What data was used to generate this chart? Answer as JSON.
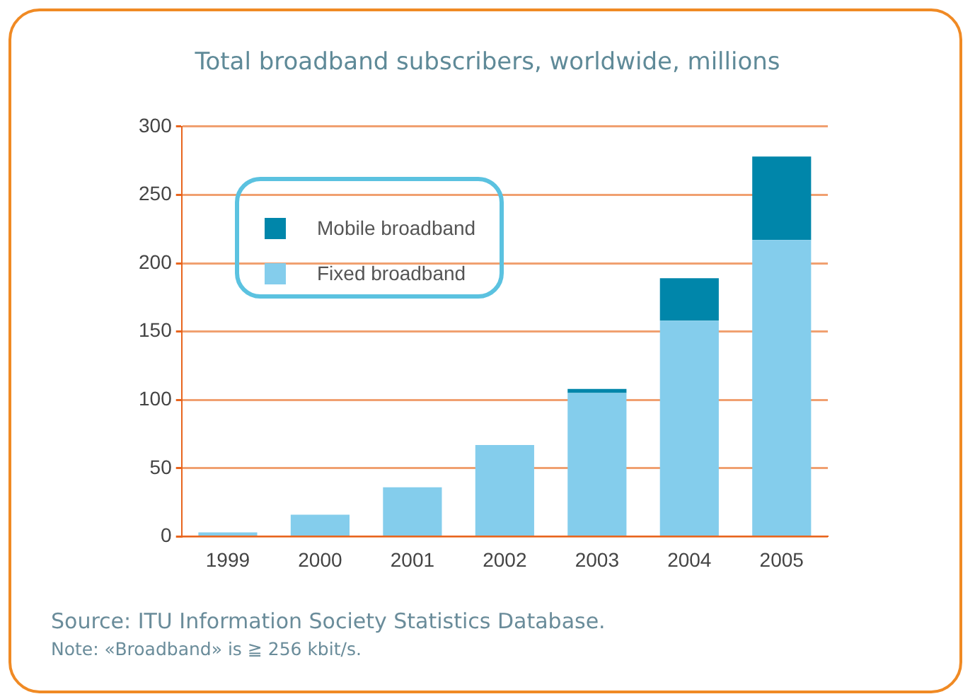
{
  "chart_data": {
    "type": "bar",
    "title": "Total broadband subscribers, worldwide, millions",
    "categories": [
      "1999",
      "2000",
      "2001",
      "2002",
      "2003",
      "2004",
      "2005"
    ],
    "stacked": true,
    "series": [
      {
        "name": "Fixed broadband",
        "color": "#84cdec",
        "values": [
          3,
          16,
          36,
          67,
          105,
          158,
          217
        ]
      },
      {
        "name": "Mobile broadband",
        "color": "#0086aa",
        "values": [
          0,
          0,
          0,
          0,
          3,
          31,
          61
        ]
      }
    ],
    "ylim": [
      0,
      300
    ],
    "yticks": [
      0,
      50,
      100,
      150,
      200,
      250,
      300
    ],
    "grid": "y",
    "legend": "top left",
    "annotations": [
      "Source: ITU Information Society Statistics Database.",
      "Note: «Broadband» is ≧ 256 kbit/s."
    ]
  }
}
